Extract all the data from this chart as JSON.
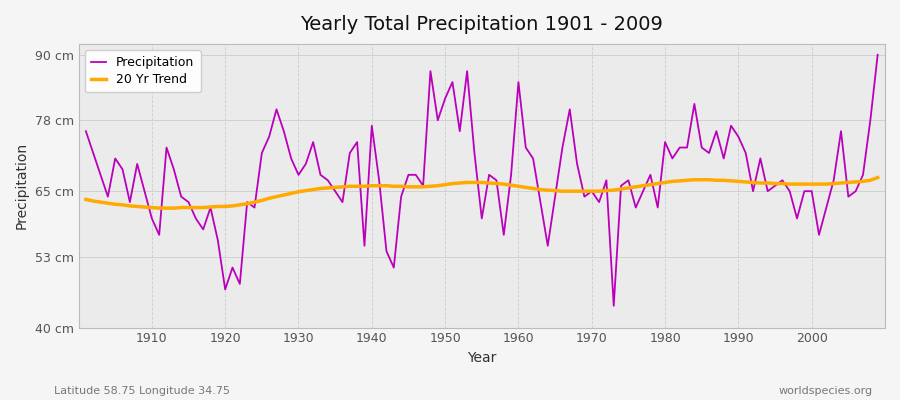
{
  "title": "Yearly Total Precipitation 1901 - 2009",
  "xlabel": "Year",
  "ylabel": "Precipitation",
  "subtitle": "Latitude 58.75 Longitude 34.75",
  "watermark": "worldspecies.org",
  "ylim": [
    40,
    92
  ],
  "yticks": [
    40,
    53,
    65,
    78,
    90
  ],
  "ytick_labels": [
    "40 cm",
    "53 cm",
    "65 cm",
    "78 cm",
    "90 cm"
  ],
  "bg_color": "#f5f5f5",
  "plot_bg_color": "#ebebeb",
  "precip_color": "#bb00bb",
  "trend_color": "#ffaa00",
  "legend_labels": [
    "Precipitation",
    "20 Yr Trend"
  ],
  "years": [
    1901,
    1902,
    1903,
    1904,
    1905,
    1906,
    1907,
    1908,
    1909,
    1910,
    1911,
    1912,
    1913,
    1914,
    1915,
    1916,
    1917,
    1918,
    1919,
    1920,
    1921,
    1922,
    1923,
    1924,
    1925,
    1926,
    1927,
    1928,
    1929,
    1930,
    1931,
    1932,
    1933,
    1934,
    1935,
    1936,
    1937,
    1938,
    1939,
    1940,
    1941,
    1942,
    1943,
    1944,
    1945,
    1946,
    1947,
    1948,
    1949,
    1950,
    1951,
    1952,
    1953,
    1954,
    1955,
    1956,
    1957,
    1958,
    1959,
    1960,
    1961,
    1962,
    1963,
    1964,
    1965,
    1966,
    1967,
    1968,
    1969,
    1970,
    1971,
    1972,
    1973,
    1974,
    1975,
    1976,
    1977,
    1978,
    1979,
    1980,
    1981,
    1982,
    1983,
    1984,
    1985,
    1986,
    1987,
    1988,
    1989,
    1990,
    1991,
    1992,
    1993,
    1994,
    1995,
    1996,
    1997,
    1998,
    1999,
    2000,
    2001,
    2002,
    2003,
    2004,
    2005,
    2006,
    2007,
    2008,
    2009
  ],
  "precip": [
    76,
    72,
    68,
    64,
    71,
    69,
    63,
    70,
    65,
    60,
    57,
    73,
    69,
    64,
    63,
    60,
    58,
    62,
    56,
    47,
    51,
    48,
    63,
    62,
    72,
    75,
    80,
    76,
    71,
    68,
    70,
    74,
    68,
    67,
    65,
    63,
    72,
    74,
    55,
    77,
    67,
    54,
    51,
    64,
    68,
    68,
    66,
    87,
    78,
    82,
    85,
    76,
    87,
    72,
    60,
    68,
    67,
    57,
    68,
    85,
    73,
    71,
    63,
    55,
    64,
    73,
    80,
    70,
    64,
    65,
    63,
    67,
    44,
    66,
    67,
    62,
    65,
    68,
    62,
    74,
    71,
    73,
    73,
    81,
    73,
    72,
    76,
    71,
    77,
    75,
    72,
    65,
    71,
    65,
    66,
    67,
    65,
    60,
    65,
    65,
    57,
    62,
    67,
    76,
    64,
    65,
    68,
    78,
    90
  ],
  "trend": [
    63.5,
    63.2,
    63.0,
    62.8,
    62.6,
    62.5,
    62.3,
    62.2,
    62.1,
    62.0,
    61.9,
    61.9,
    61.9,
    62.0,
    62.0,
    62.0,
    62.0,
    62.1,
    62.2,
    62.2,
    62.3,
    62.5,
    62.7,
    63.0,
    63.3,
    63.7,
    64.0,
    64.3,
    64.6,
    64.9,
    65.1,
    65.3,
    65.5,
    65.6,
    65.7,
    65.8,
    65.9,
    65.9,
    65.9,
    66.0,
    66.0,
    66.0,
    65.9,
    65.9,
    65.8,
    65.8,
    65.8,
    65.9,
    66.0,
    66.2,
    66.4,
    66.5,
    66.6,
    66.6,
    66.6,
    66.5,
    66.4,
    66.3,
    66.1,
    65.9,
    65.7,
    65.5,
    65.3,
    65.2,
    65.1,
    65.0,
    65.0,
    65.0,
    65.0,
    65.0,
    65.0,
    65.1,
    65.2,
    65.4,
    65.6,
    65.8,
    66.0,
    66.2,
    66.4,
    66.6,
    66.8,
    66.9,
    67.0,
    67.1,
    67.1,
    67.1,
    67.0,
    67.0,
    66.9,
    66.8,
    66.7,
    66.6,
    66.5,
    66.5,
    66.4,
    66.4,
    66.3,
    66.3,
    66.3,
    66.3,
    66.3,
    66.3,
    66.4,
    66.5,
    66.6,
    66.7,
    66.8,
    67.0,
    67.5
  ]
}
